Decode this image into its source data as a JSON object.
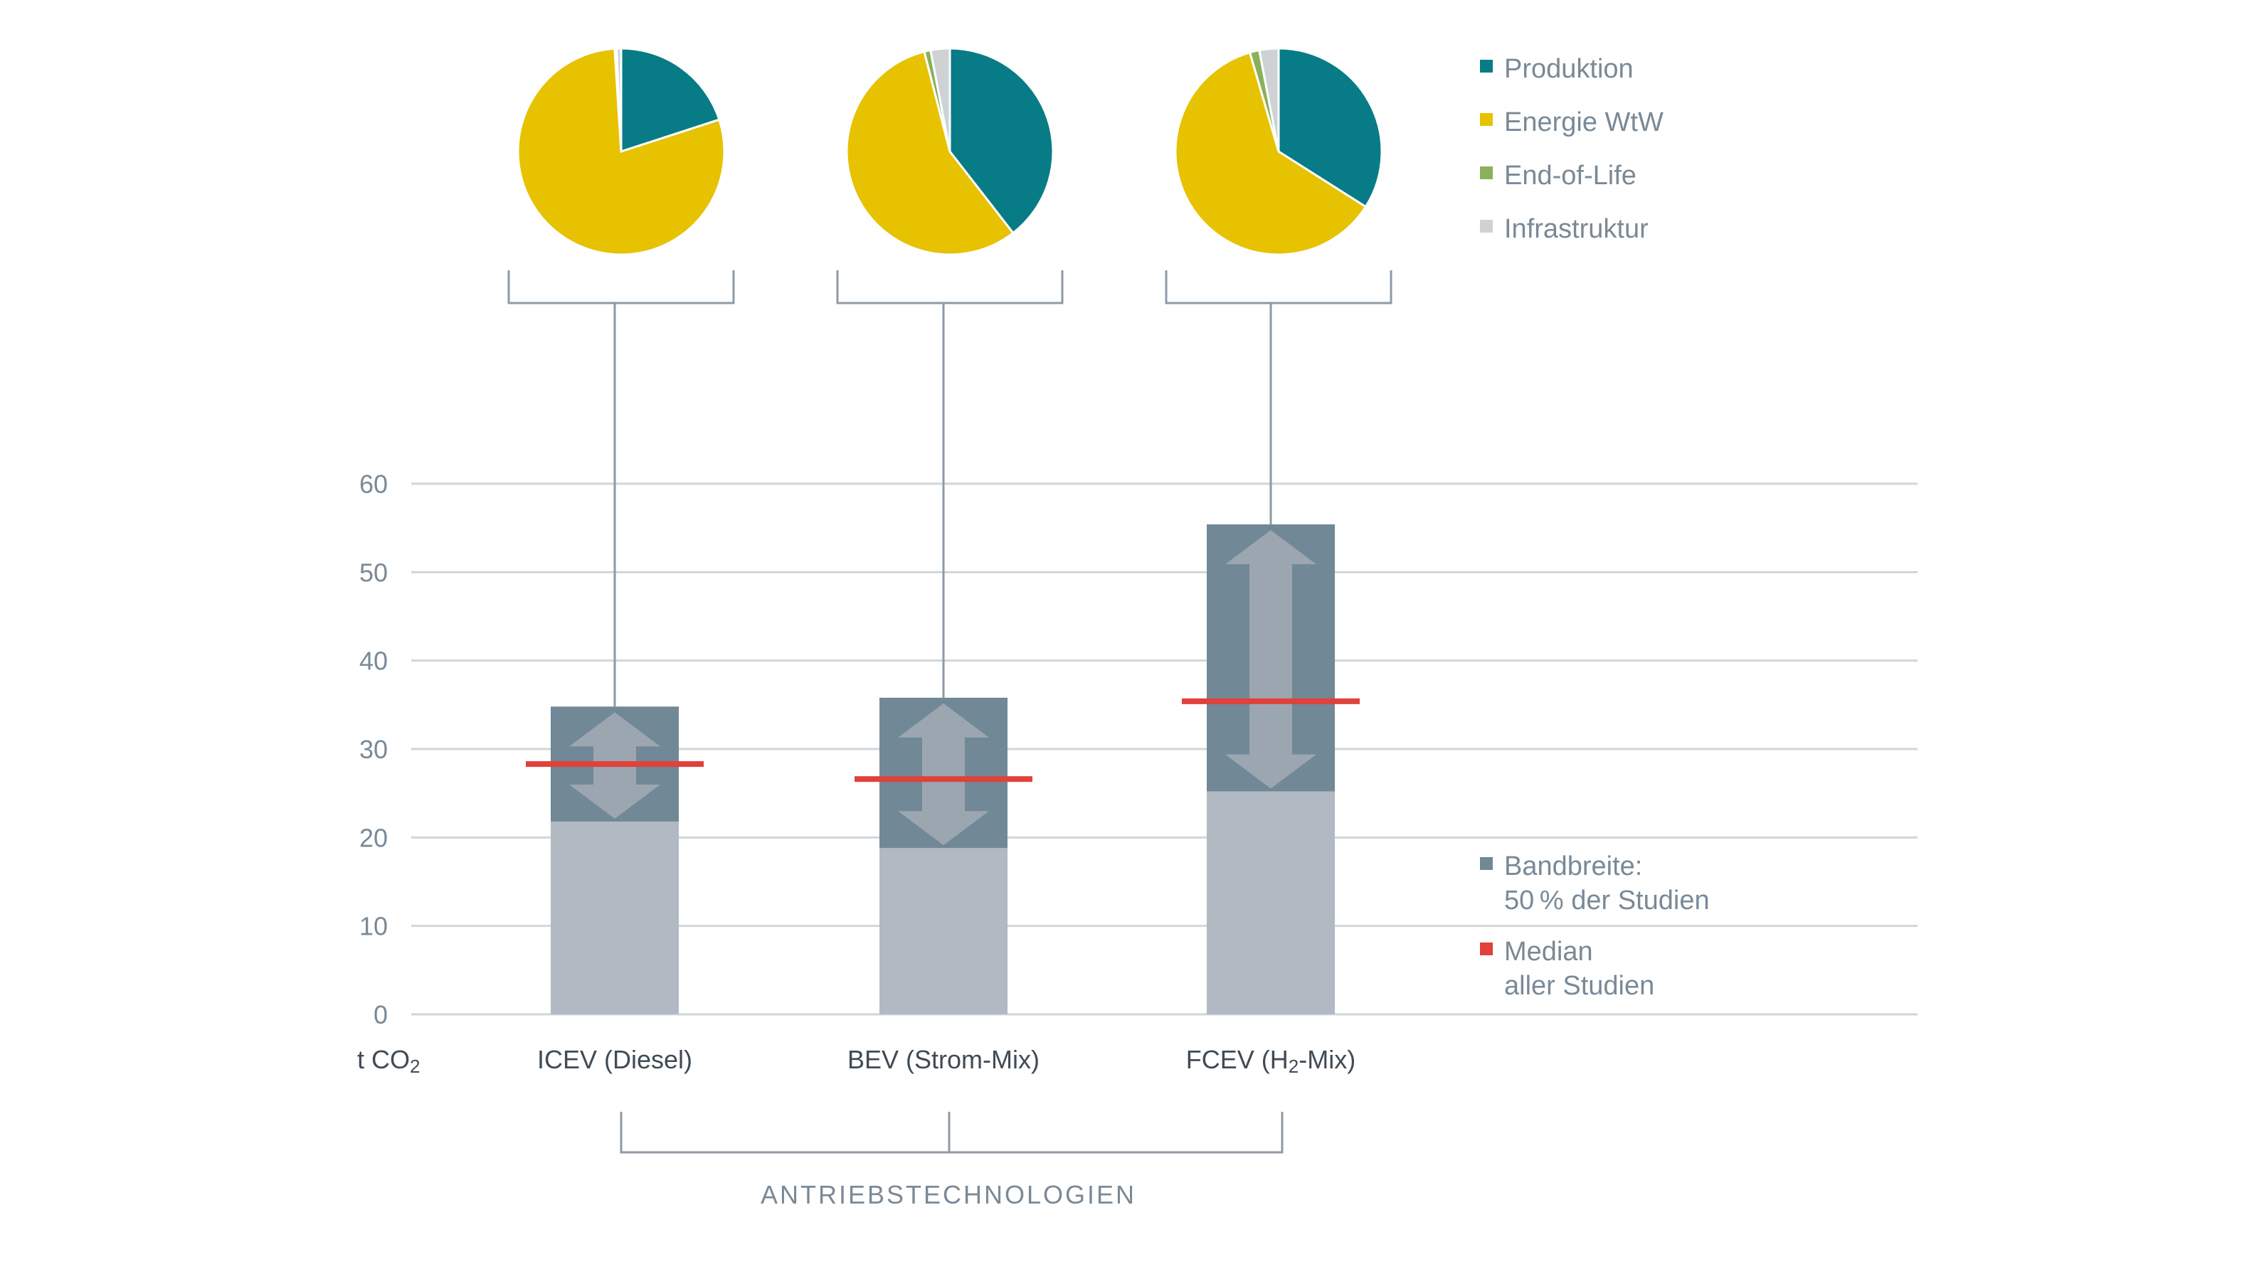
{
  "chart_data": [
    {
      "type": "bar",
      "title": "",
      "ylabel": "t CO₂",
      "ylim": [
        0,
        60
      ],
      "yticks": [
        "0",
        "10",
        "20",
        "30",
        "40",
        "50",
        "60"
      ],
      "xgroup_label": "ANTRIEBSTECHNOLOGIEN",
      "categories": [
        "ICEV (Diesel)",
        "BEV (Strom-Mix)",
        "FCEV (H₂-Mix)"
      ],
      "range_low": [
        21.8,
        18.8,
        25.2
      ],
      "range_high": [
        34.8,
        35.8,
        55.4
      ],
      "median": [
        28.3,
        26.6,
        35.4
      ],
      "grid": true,
      "legend": [
        {
          "label_line1": "Bandbreite:",
          "label_line2": "50 % der Studien",
          "color": "#718896"
        },
        {
          "label_line1": "Median",
          "label_line2": "aller Studien",
          "color": "#e0413a"
        }
      ]
    },
    {
      "type": "pie",
      "categories": [
        "ICEV (Diesel)",
        "BEV (Strom-Mix)",
        "FCEV (H₂-Mix)"
      ],
      "slice_labels": [
        "Produktion",
        "Energie WtW",
        "End-of-Life",
        "Infrastruktur"
      ],
      "slice_colors": [
        "#077c86",
        "#e6c200",
        "#8bb05b",
        "#cfd2d4"
      ],
      "shares_percent": [
        [
          20,
          79,
          0.3,
          0.7
        ],
        [
          39.5,
          56.5,
          1,
          3
        ],
        [
          34,
          61.5,
          1.5,
          3
        ]
      ],
      "legend": [
        {
          "label": "Produktion",
          "color": "#077c86"
        },
        {
          "label": "Energie WtW",
          "color": "#e6c200"
        },
        {
          "label": "End-of-Life",
          "color": "#8bb05b"
        },
        {
          "label": "Infrastruktur",
          "color": "#cfd2d4"
        }
      ]
    }
  ]
}
